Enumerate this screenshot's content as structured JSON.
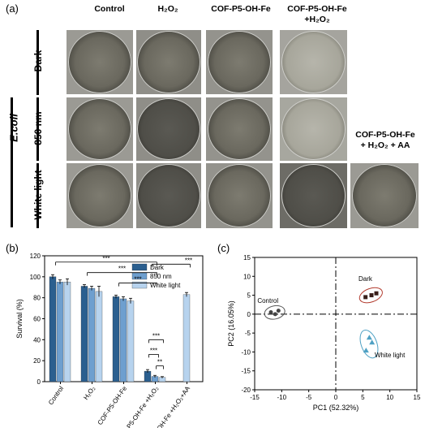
{
  "panel_a": {
    "label": "(a)",
    "column_headers": [
      "Control",
      "H₂O₂",
      "COF-P5-OH-Fe",
      "COF-P5-OH-Fe",
      "+H₂O₂"
    ],
    "extra_header_line1": "COF-P5-OH-Fe",
    "extra_header_line2": "+ H₂O₂ + AA",
    "organism": "E.coli",
    "rows": [
      "Dark",
      "850 nm",
      "White light"
    ]
  },
  "panel_b": {
    "label": "(b)",
    "ylabel": "Survival (%)",
    "significance": "***",
    "significance2": "**"
  },
  "panel_c": {
    "label": "(c)",
    "xlabel": "PC1 (52.32%)",
    "ylabel": "PC2 (16.05%)",
    "group_labels": [
      "Control",
      "Dark",
      "White light"
    ]
  },
  "chart_data": [
    {
      "type": "bar",
      "categories": [
        "Control",
        "H₂O₂",
        "COF-P5-OH-Fe",
        "COF-P5-OH-Fe +H₂O₂",
        "COF-P5-OH-Fe +H₂O₂+AA"
      ],
      "series": [
        {
          "name": "Dark",
          "values": [
            100,
            91,
            81,
            10,
            null
          ],
          "errors": [
            2,
            1.5,
            1.5,
            1.5,
            null
          ],
          "color": "#2b5f8f"
        },
        {
          "name": "850 nm",
          "values": [
            95,
            89,
            79,
            5,
            null
          ],
          "errors": [
            2,
            2,
            2,
            1,
            null
          ],
          "color": "#6e9fcf"
        },
        {
          "name": "White light",
          "values": [
            95,
            86,
            77,
            4,
            83
          ],
          "errors": [
            3,
            5,
            2.5,
            0.8,
            2
          ],
          "color": "#b7d3ee"
        }
      ],
      "ylabel": "Survival (%)",
      "ylim": [
        0,
        120
      ],
      "yticks": [
        0,
        20,
        40,
        60,
        80,
        100,
        120
      ],
      "legend": "top-right"
    },
    {
      "type": "scatter",
      "xlabel": "PC1 (52.32%)",
      "ylabel": "PC2 (16.05%)",
      "xlim": [
        -15,
        15
      ],
      "ylim": [
        -20,
        15
      ],
      "xticks": [
        -15,
        -10,
        -5,
        0,
        5,
        10,
        15
      ],
      "yticks": [
        -20,
        -15,
        -10,
        -5,
        0,
        5,
        10,
        15
      ],
      "groups": [
        {
          "name": "Control",
          "color": "#555555",
          "points": [
            [
              -12,
              0.5
            ],
            [
              -11.2,
              0
            ],
            [
              -10.6,
              0.9
            ]
          ]
        },
        {
          "name": "Dark",
          "color": "#b23b2e",
          "points": [
            [
              5.5,
              4.5
            ],
            [
              6.6,
              5
            ],
            [
              7.5,
              5.5
            ]
          ]
        },
        {
          "name": "White light",
          "color": "#4fa1c4",
          "points": [
            [
              6.2,
              -6.2
            ],
            [
              6.7,
              -7.5
            ],
            [
              5.6,
              -9.6
            ]
          ]
        }
      ]
    }
  ]
}
